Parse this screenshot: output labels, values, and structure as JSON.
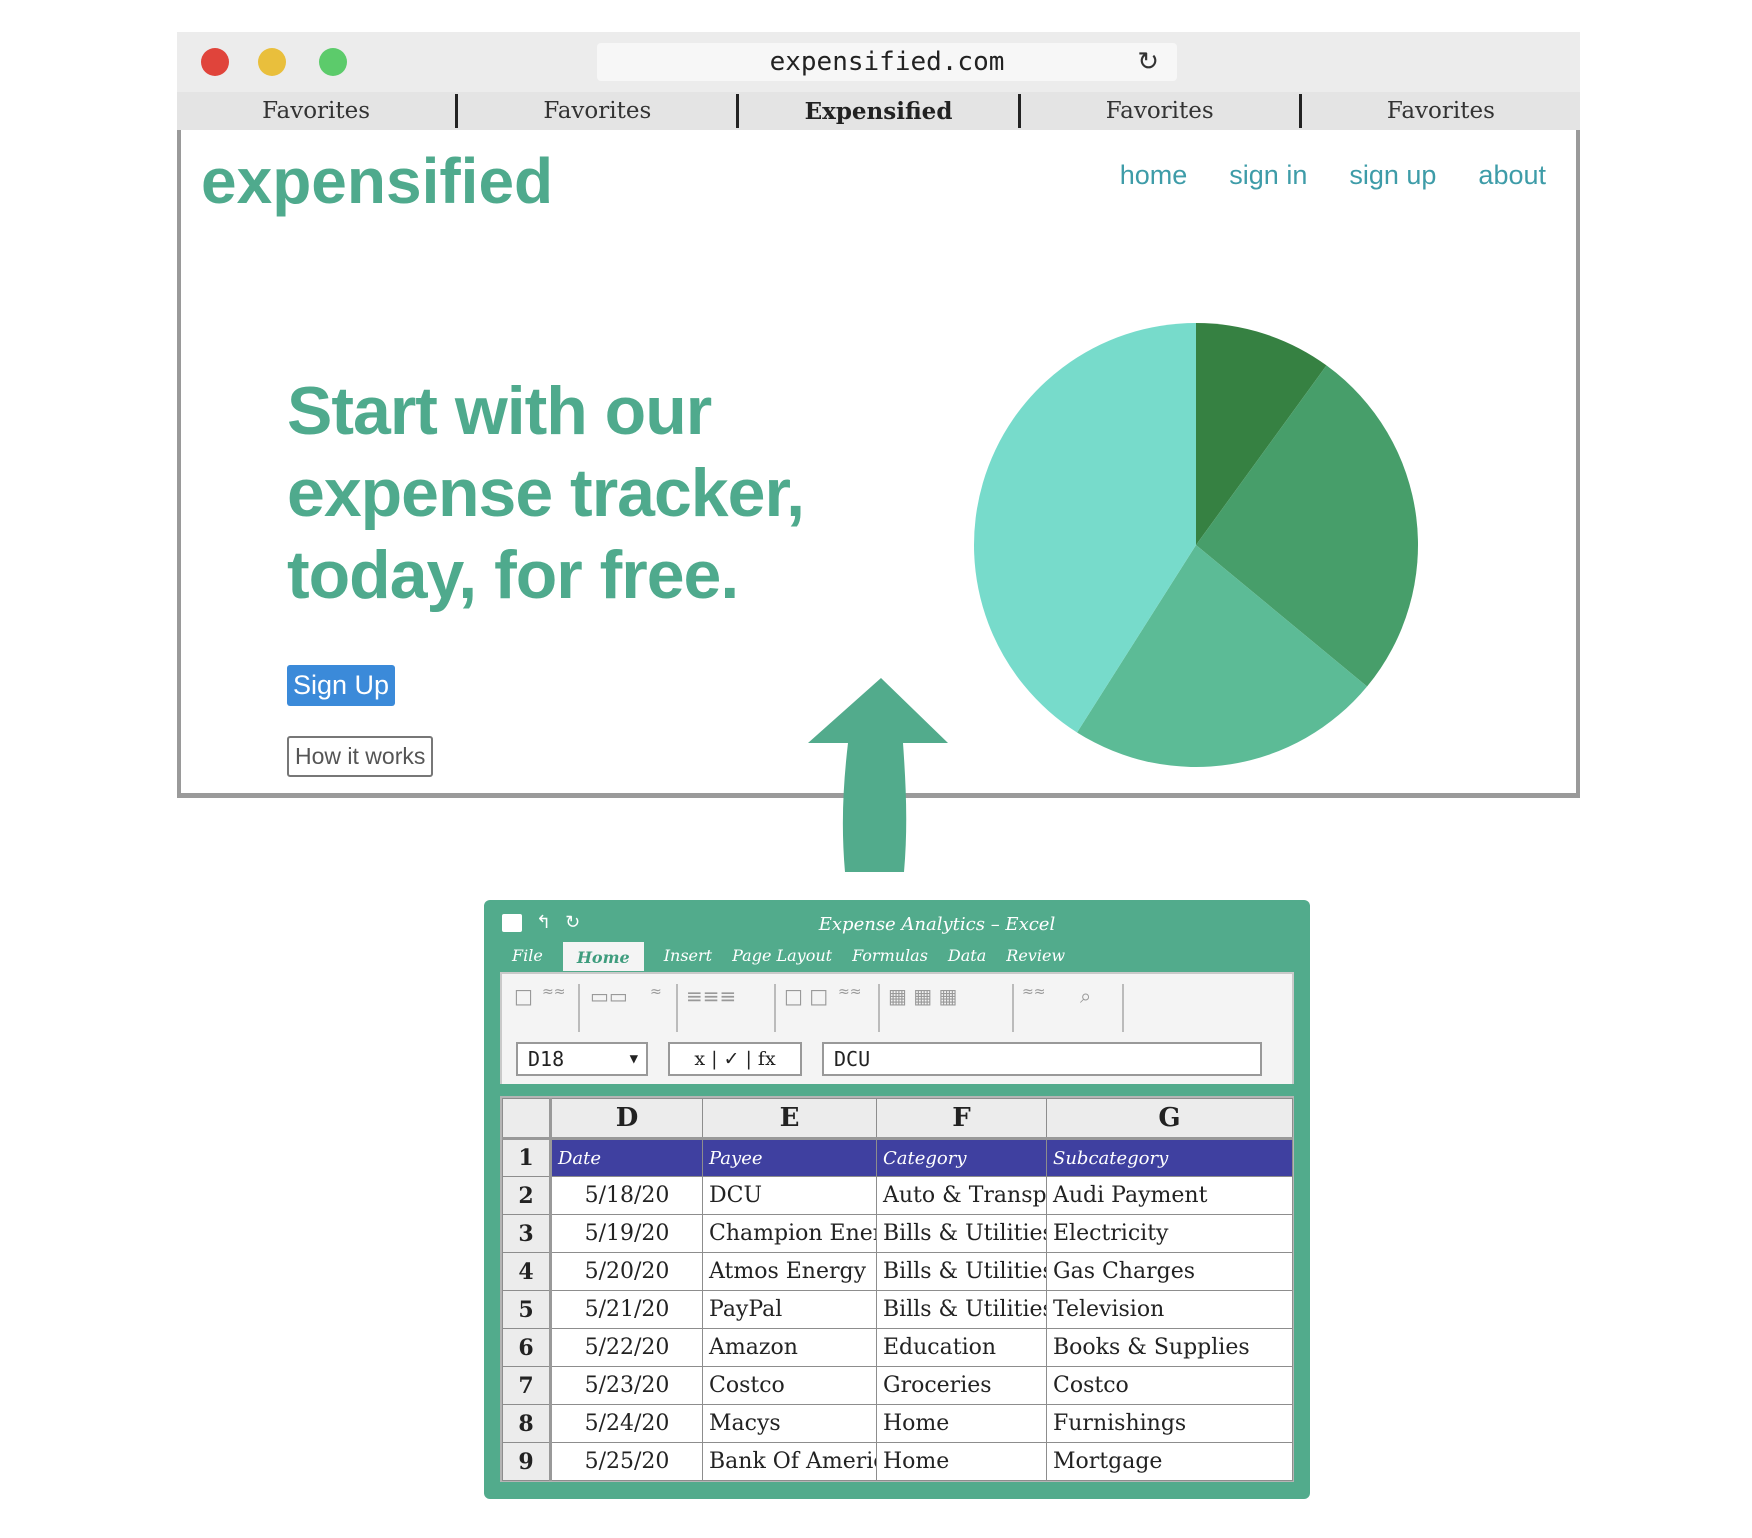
{
  "browser": {
    "url": "expensified.com",
    "reload_icon": "reload-icon",
    "tabs": [
      "Favorites",
      "Favorites",
      "Expensified",
      "Favorites",
      "Favorites"
    ],
    "active_tab": 2
  },
  "site": {
    "brand": "expensified",
    "nav": [
      "home",
      "sign in",
      "sign up",
      "about"
    ],
    "hero": [
      "Start with our",
      "expense tracker,",
      "today, for free."
    ],
    "signup_label": "Sign Up",
    "how_label": "How it works",
    "colors": {
      "brand": "#4faa8d",
      "nav": "#3e9ca8",
      "button": "#3b8ad9"
    }
  },
  "pie": {
    "slices": [
      {
        "value": 10,
        "color": "#368142"
      },
      {
        "value": 26,
        "color": "#479e6a"
      },
      {
        "value": 23,
        "color": "#5cbb96"
      },
      {
        "value": 41,
        "color": "#77dbcb"
      }
    ]
  },
  "excel": {
    "title": "Expense Analytics – Excel",
    "menu": [
      "File",
      "Home",
      "Insert",
      "Page Layout",
      "Formulas",
      "Data",
      "Review"
    ],
    "active_menu": 1,
    "name_box": "D18",
    "fx_box": "x | ✓ | fx",
    "formula": "DCU",
    "columns": [
      "D",
      "E",
      "F",
      "G"
    ],
    "header_row": {
      "num": "1",
      "cells": [
        "Date",
        "Payee",
        "Category",
        "Subcategory"
      ]
    },
    "rows": [
      {
        "num": "2",
        "cells": [
          "5/18/20",
          "DCU",
          "Auto & Transport",
          "Audi Payment"
        ]
      },
      {
        "num": "3",
        "cells": [
          "5/19/20",
          "Champion Energy",
          "Bills & Utilities",
          "Electricity"
        ]
      },
      {
        "num": "4",
        "cells": [
          "5/20/20",
          "Atmos Energy",
          "Bills & Utilities",
          "Gas Charges"
        ]
      },
      {
        "num": "5",
        "cells": [
          "5/21/20",
          "PayPal",
          "Bills & Utilities",
          "Television"
        ]
      },
      {
        "num": "6",
        "cells": [
          "5/22/20",
          "Amazon",
          "Education",
          "Books & Supplies"
        ]
      },
      {
        "num": "7",
        "cells": [
          "5/23/20",
          "Costco",
          "Groceries",
          "Costco"
        ]
      },
      {
        "num": "8",
        "cells": [
          "5/24/20",
          "Macys",
          "Home",
          "Furnishings"
        ]
      },
      {
        "num": "9",
        "cells": [
          "5/25/20",
          "Bank Of America",
          "Home",
          "Mortgage"
        ]
      }
    ],
    "colors": {
      "frame": "#52ab8c",
      "header": "#3f40a0"
    }
  },
  "arrow": {
    "color": "#52ab8c"
  }
}
